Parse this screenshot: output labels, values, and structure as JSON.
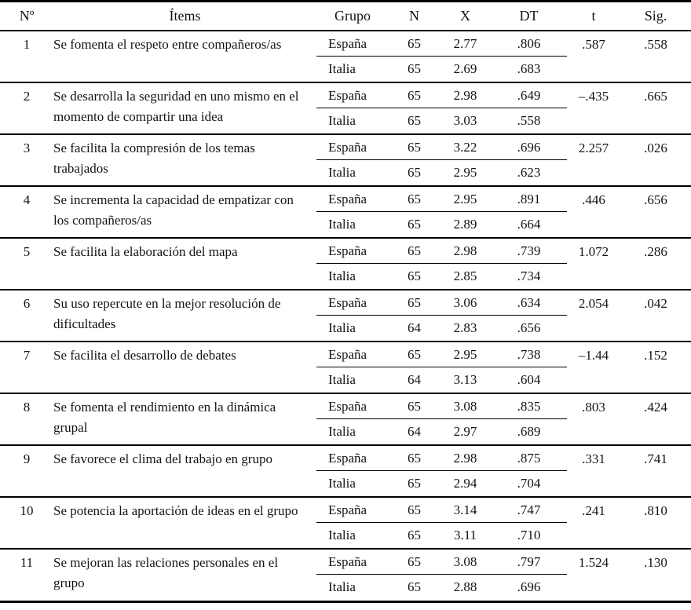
{
  "table": {
    "columns": {
      "no": "Nº",
      "items": "Ítems",
      "grupo": "Grupo",
      "n": "N",
      "x": "X",
      "dt": "DT",
      "t": "t",
      "sig": "Sig."
    },
    "rows": [
      {
        "no": "1",
        "item": "Se fomenta el respeto entre compañeros/as",
        "groups": [
          {
            "grupo": "España",
            "n": "65",
            "x": "2.77",
            "dt": ".806"
          },
          {
            "grupo": "Italia",
            "n": "65",
            "x": "2.69",
            "dt": ".683"
          }
        ],
        "t": ".587",
        "sig": ".558"
      },
      {
        "no": "2",
        "item": "Se desarrolla la seguridad en uno mismo en el momento de compartir una idea",
        "groups": [
          {
            "grupo": "España",
            "n": "65",
            "x": "2.98",
            "dt": ".649"
          },
          {
            "grupo": "Italia",
            "n": "65",
            "x": "3.03",
            "dt": ".558"
          }
        ],
        "t": "–.435",
        "sig": ".665"
      },
      {
        "no": "3",
        "item": "Se facilita la compresión de los temas trabajados",
        "groups": [
          {
            "grupo": "España",
            "n": "65",
            "x": "3.22",
            "dt": ".696"
          },
          {
            "grupo": "Italia",
            "n": "65",
            "x": "2.95",
            "dt": ".623"
          }
        ],
        "t": "2.257",
        "sig": ".026"
      },
      {
        "no": "4",
        "item": "Se incrementa la capacidad de empatizar con los compañeros/as",
        "groups": [
          {
            "grupo": "España",
            "n": "65",
            "x": "2.95",
            "dt": ".891"
          },
          {
            "grupo": "Italia",
            "n": "65",
            "x": "2.89",
            "dt": ".664"
          }
        ],
        "t": ".446",
        "sig": ".656"
      },
      {
        "no": "5",
        "item": "Se facilita la elaboración del mapa",
        "groups": [
          {
            "grupo": "España",
            "n": "65",
            "x": "2.98",
            "dt": ".739"
          },
          {
            "grupo": "Italia",
            "n": "65",
            "x": "2.85",
            "dt": ".734"
          }
        ],
        "t": "1.072",
        "sig": ".286"
      },
      {
        "no": "6",
        "item": "Su uso repercute en la mejor resolución de dificultades",
        "groups": [
          {
            "grupo": "España",
            "n": "65",
            "x": "3.06",
            "dt": ".634"
          },
          {
            "grupo": "Italia",
            "n": "64",
            "x": "2.83",
            "dt": ".656"
          }
        ],
        "t": "2.054",
        "sig": ".042"
      },
      {
        "no": "7",
        "item": "Se facilita el desarrollo de debates",
        "groups": [
          {
            "grupo": "España",
            "n": "65",
            "x": "2.95",
            "dt": ".738"
          },
          {
            "grupo": "Italia",
            "n": "64",
            "x": "3.13",
            "dt": ".604"
          }
        ],
        "t": "–1.44",
        "sig": ".152"
      },
      {
        "no": "8",
        "item": "Se fomenta el rendimiento en la dinámica grupal",
        "groups": [
          {
            "grupo": "España",
            "n": "65",
            "x": "3.08",
            "dt": ".835"
          },
          {
            "grupo": "Italia",
            "n": "64",
            "x": "2.97",
            "dt": ".689"
          }
        ],
        "t": ".803",
        "sig": ".424"
      },
      {
        "no": "9",
        "item": "Se favorece el clima del trabajo en grupo",
        "groups": [
          {
            "grupo": "España",
            "n": "65",
            "x": "2.98",
            "dt": ".875"
          },
          {
            "grupo": "Italia",
            "n": "65",
            "x": "2.94",
            "dt": ".704"
          }
        ],
        "t": ".331",
        "sig": ".741"
      },
      {
        "no": "10",
        "item": "Se potencia la aportación de ideas en el grupo",
        "groups": [
          {
            "grupo": "España",
            "n": "65",
            "x": "3.14",
            "dt": ".747"
          },
          {
            "grupo": "Italia",
            "n": "65",
            "x": "3.11",
            "dt": ".710"
          }
        ],
        "t": ".241",
        "sig": ".810"
      },
      {
        "no": "11",
        "item": "Se mejoran las relaciones personales en el grupo",
        "groups": [
          {
            "grupo": "España",
            "n": "65",
            "x": "3.08",
            "dt": ".797"
          },
          {
            "grupo": "Italia",
            "n": "65",
            "x": "2.88",
            "dt": ".696"
          }
        ],
        "t": "1.524",
        "sig": ".130"
      }
    ]
  }
}
